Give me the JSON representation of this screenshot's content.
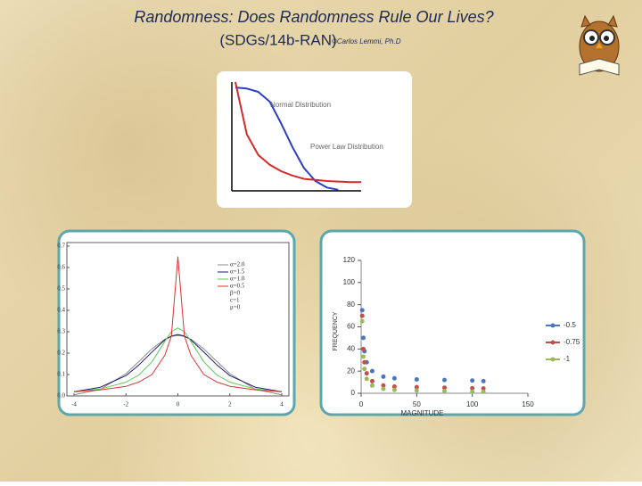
{
  "title": "Randomness: Does Randomness Rule Our Lives?",
  "subtitle": "(SDGs/14b-RAN)",
  "credit": "©Carlos Lemmi, Ph.D",
  "chart_data": [
    {
      "type": "line",
      "categories": [
        null,
        null,
        null,
        null,
        null,
        null,
        null,
        null,
        null,
        null,
        null,
        null
      ],
      "ylim": [
        0,
        100
      ],
      "series": [
        {
          "name": "Normal Distribution",
          "color": "#2b3fc4",
          "values": [
            95,
            94,
            91,
            82,
            62,
            40,
            21,
            9,
            3,
            1,
            null,
            null
          ]
        },
        {
          "name": "Power Law Distribution",
          "color": "#d42a2a",
          "values": [
            100,
            52,
            33,
            24,
            18,
            14,
            11,
            10,
            9,
            8.5,
            8,
            8
          ]
        }
      ]
    },
    {
      "type": "line",
      "x": [
        -4,
        -3,
        -2,
        -1.5,
        -1,
        -0.5,
        -0.25,
        0,
        0.25,
        0.5,
        1,
        1.5,
        2,
        3,
        4
      ],
      "xlim": [
        -4,
        4
      ],
      "ylim": [
        0,
        0.7
      ],
      "xticks": [
        -4,
        -2,
        0,
        2,
        4
      ],
      "yticks": [
        {
          "value": 0,
          "label": "0.0"
        },
        0.1,
        0.2,
        0.3,
        0.4,
        0.5,
        0.6,
        0.7
      ],
      "series": [
        {
          "name": "α=2.0",
          "color": "#8c8c8c",
          "values": [
            0.005,
            0.03,
            0.104,
            0.161,
            0.22,
            0.265,
            0.278,
            0.282,
            0.278,
            0.265,
            0.22,
            0.161,
            0.104,
            0.03,
            0.005
          ]
        },
        {
          "name": "α=1.5",
          "color": "#1a1a70",
          "values": [
            0.02,
            0.04,
            0.095,
            0.145,
            0.205,
            0.262,
            0.28,
            0.287,
            0.28,
            0.262,
            0.205,
            0.145,
            0.095,
            0.04,
            0.02
          ]
        },
        {
          "name": "α=1.0",
          "color": "#5cc85c",
          "values": [
            0.019,
            0.032,
            0.064,
            0.098,
            0.159,
            0.255,
            0.3,
            0.318,
            0.3,
            0.255,
            0.159,
            0.098,
            0.064,
            0.032,
            0.019
          ]
        },
        {
          "name": "α=0.5",
          "color": "#e03030",
          "values": [
            0.019,
            0.028,
            0.045,
            0.065,
            0.1,
            0.19,
            0.28,
            0.65,
            0.28,
            0.19,
            0.1,
            0.065,
            0.045,
            0.028,
            0.019
          ]
        }
      ],
      "annotations": [
        "β=0",
        "c=1",
        "μ=0"
      ]
    },
    {
      "type": "scatter",
      "x_label": "MAGNITUDE",
      "y_label": "FREQUENCY",
      "x": [
        1,
        2,
        3,
        5,
        10,
        20,
        30,
        50,
        75,
        100,
        110
      ],
      "xlim": [
        0,
        150
      ],
      "ylim": [
        0,
        120
      ],
      "xticks": [
        0,
        50,
        100,
        150
      ],
      "yticks": [
        0,
        20,
        40,
        60,
        80,
        100,
        120
      ],
      "series": [
        {
          "name": "-0.5",
          "color": "#4a76c0",
          "values": [
            75,
            50,
            38,
            28,
            20,
            15,
            13.5,
            12.5,
            12,
            11.5,
            11
          ]
        },
        {
          "name": "-0.75",
          "color": "#c0504d",
          "values": [
            70,
            40,
            28,
            18,
            11,
            7,
            6,
            5.5,
            5,
            4.5,
            4.3
          ]
        },
        {
          "name": "-1",
          "color": "#9bbb59",
          "values": [
            65,
            33,
            22,
            13,
            7,
            4,
            3,
            2.5,
            2,
            1.5,
            1.4
          ]
        }
      ]
    }
  ]
}
